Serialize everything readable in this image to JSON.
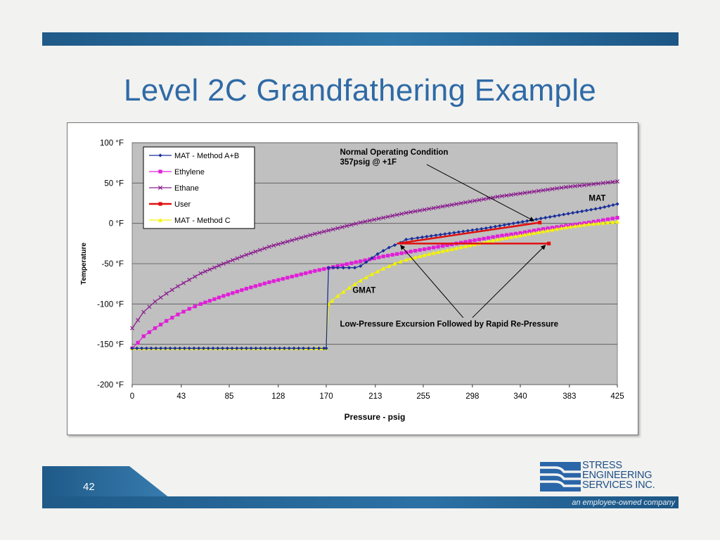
{
  "slide": {
    "title": "Level 2C Grandfathering Example",
    "page_number": "42",
    "logo_lines": [
      "STRESS",
      "ENGINEERING",
      "SERVICES INC."
    ],
    "tagline": "an employee-owned company",
    "colors": {
      "brand_blue": "#1f5a88",
      "title_blue": "#2f6aa6"
    }
  },
  "chart_data": {
    "type": "line",
    "xlabel": "Pressure - psig",
    "ylabel": "Temperature",
    "xlim": [
      0,
      425
    ],
    "ylim": [
      -200,
      100
    ],
    "x_ticks": [
      "0",
      "43",
      "85",
      "128",
      "170",
      "213",
      "255",
      "298",
      "340",
      "383",
      "425"
    ],
    "y_ticks": [
      "100 °F",
      "50 °F",
      "0 °F",
      "-50 °F",
      "-100 °F",
      "-150 °F",
      "-200 °F"
    ],
    "grid": true,
    "legend_position": "top-left",
    "series": [
      {
        "name": "MAT - Method A+B",
        "color": "#1a2f9a",
        "marker": "diamond",
        "x": [
          0,
          25,
          50,
          75,
          100,
          125,
          150,
          168,
          170,
          172,
          176,
          180,
          185,
          190,
          195,
          200,
          205,
          210,
          215,
          220,
          225,
          230,
          235,
          240,
          250,
          270,
          290,
          310,
          330,
          350,
          370,
          390,
          410,
          425
        ],
        "y": [
          -155,
          -155,
          -155,
          -155,
          -155,
          -155,
          -155,
          -155,
          -155,
          -55,
          -55,
          -55,
          -55,
          -55,
          -55,
          -53,
          -48,
          -43,
          -38,
          -34,
          -30,
          -27,
          -24,
          -20,
          -18,
          -14,
          -10,
          -6,
          -1,
          4,
          9,
          14,
          19,
          24
        ]
      },
      {
        "name": "Ethylene",
        "color": "#e020d8",
        "marker": "square",
        "x": [
          0,
          5,
          10,
          20,
          30,
          40,
          50,
          60,
          80,
          100,
          120,
          140,
          160,
          180,
          200,
          220,
          240,
          260,
          280,
          300,
          320,
          340,
          360,
          380,
          400,
          425
        ],
        "y": [
          -155,
          -148,
          -140,
          -130,
          -121,
          -113,
          -106,
          -100,
          -90,
          -81,
          -73,
          -66,
          -59,
          -53,
          -47,
          -41,
          -36,
          -31,
          -26,
          -21,
          -16,
          -12,
          -7,
          -3,
          1,
          7
        ]
      },
      {
        "name": "Ethane",
        "color": "#8b1f8f",
        "marker": "x",
        "x": [
          0,
          5,
          10,
          20,
          30,
          40,
          50,
          60,
          80,
          100,
          120,
          140,
          160,
          180,
          200,
          220,
          240,
          260,
          280,
          300,
          320,
          340,
          360,
          380,
          400,
          425
        ],
        "y": [
          -130,
          -120,
          -110,
          -97,
          -87,
          -78,
          -70,
          -62,
          -50,
          -39,
          -29,
          -21,
          -13,
          -6,
          1,
          7,
          13,
          18,
          23,
          28,
          33,
          37,
          41,
          45,
          48,
          52
        ]
      },
      {
        "name": "User",
        "color": "#e01010",
        "marker": "square",
        "x": [
          232,
          357,
          232,
          365
        ],
        "y": [
          -25,
          1,
          -25,
          -25
        ],
        "segments": [
          [
            [
              232,
              -25
            ],
            [
              357,
              1
            ]
          ],
          [
            [
              232,
              -25
            ],
            [
              365,
              -25
            ]
          ]
        ]
      },
      {
        "name": "MAT - Method C",
        "color": "#f4f400",
        "marker": "triangle",
        "x": [
          0,
          25,
          50,
          75,
          100,
          125,
          150,
          170,
          172,
          175,
          180,
          190,
          200,
          210,
          220,
          230,
          240,
          260,
          280,
          300,
          320,
          340,
          360,
          380,
          400,
          425
        ],
        "y": [
          -155,
          -155,
          -155,
          -155,
          -155,
          -155,
          -155,
          -155,
          -100,
          -96,
          -90,
          -80,
          -71,
          -63,
          -56,
          -50,
          -45,
          -38,
          -32,
          -26,
          -20,
          -15,
          -10,
          -5,
          -1,
          2
        ]
      }
    ],
    "annotations": [
      {
        "text": "Normal Operating Condition",
        "x": 182,
        "y": 85
      },
      {
        "text": "357psig @ +1F",
        "x": 182,
        "y": 73
      },
      {
        "text": "MAT",
        "x": 400,
        "y": 28
      },
      {
        "text": "GMAT",
        "x": 193,
        "y": -86
      },
      {
        "text": "Low-Pressure Excursion Followed by Rapid Re-Pressure",
        "x": 182,
        "y": -128
      }
    ],
    "arrows": [
      {
        "from": [
          258,
          73
        ],
        "to": [
          352,
          3
        ]
      },
      {
        "from": [
          290,
          -117
        ],
        "to": [
          235,
          -27
        ]
      },
      {
        "from": [
          298,
          -117
        ],
        "to": [
          362,
          -27
        ]
      }
    ]
  }
}
